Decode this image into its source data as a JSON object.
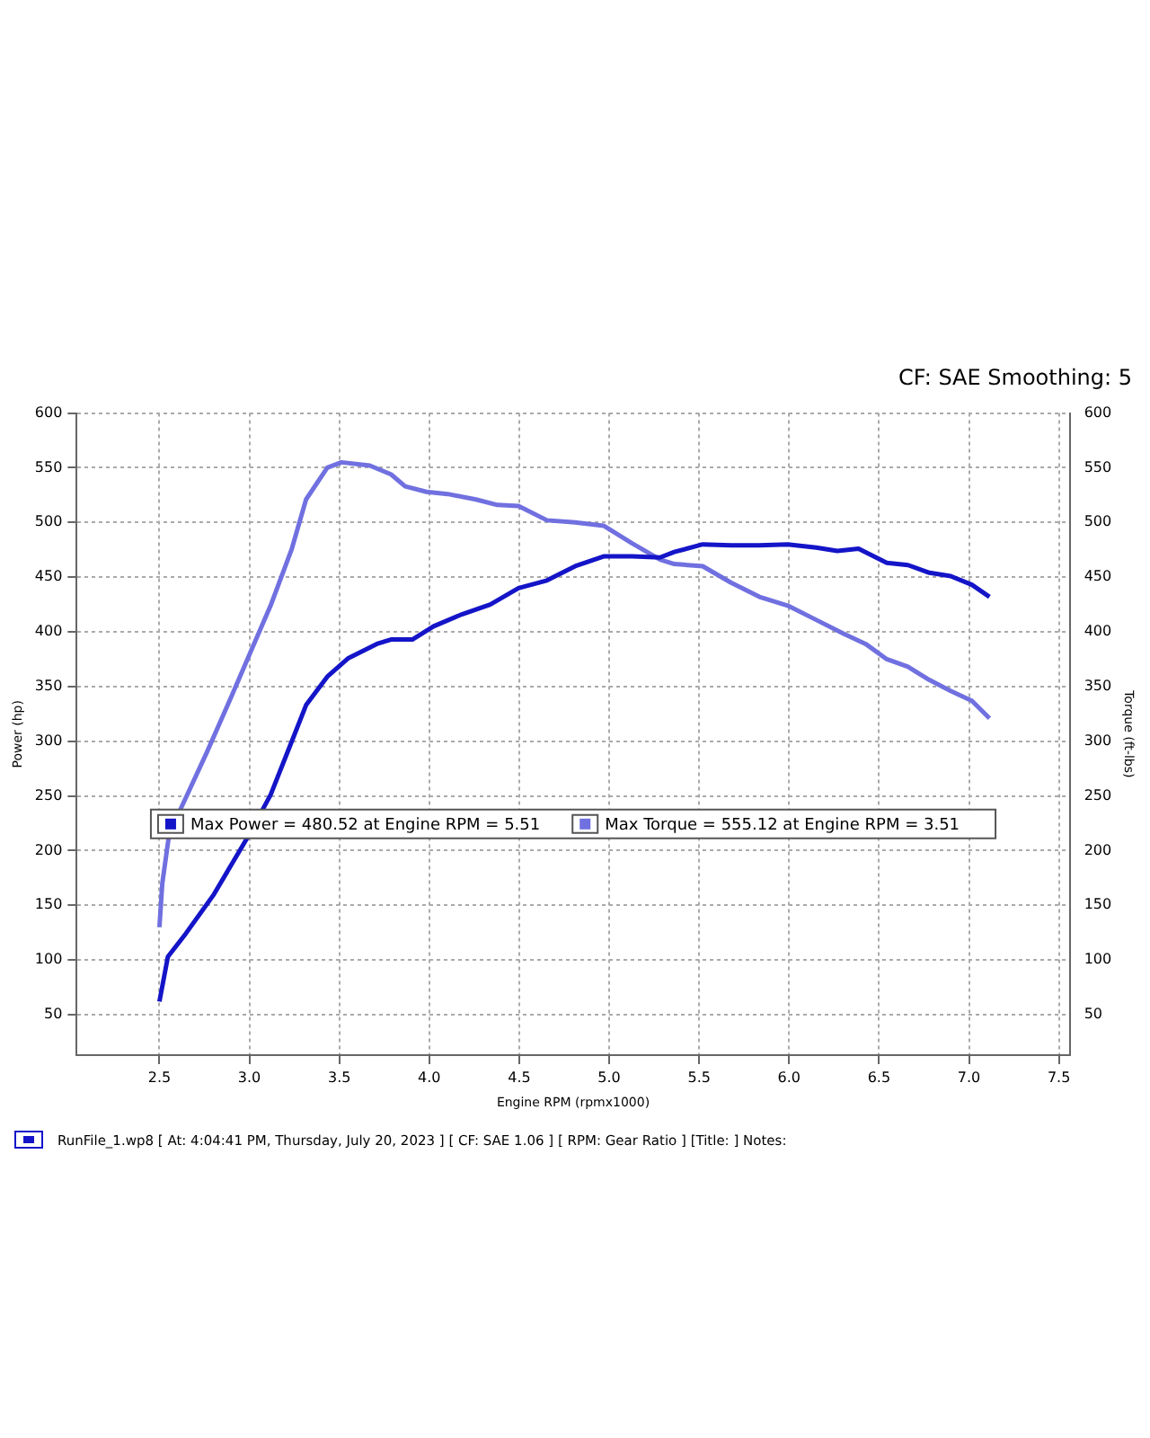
{
  "chart_data": {
    "type": "line",
    "subtitle": "CF: SAE Smoothing: 5",
    "xlabel": "Engine RPM (rpmx1000)",
    "ylabel": "Power (hp)",
    "y2label": "Torque (ft-lbs)",
    "xlim": [
      2.04,
      7.56
    ],
    "xticks": [
      {
        "value": 2.5,
        "label": "2.5"
      },
      {
        "value": 3,
        "label": "3.0"
      },
      {
        "value": 3.5,
        "label": "3.5"
      },
      {
        "value": 4,
        "label": "4.0"
      },
      {
        "value": 4.5,
        "label": "4.5"
      },
      {
        "value": 5,
        "label": "5.0"
      },
      {
        "value": 5.5,
        "label": "5.5"
      },
      {
        "value": 6,
        "label": "6.0"
      },
      {
        "value": 6.5,
        "label": "6.5"
      },
      {
        "value": 7,
        "label": "7.0"
      },
      {
        "value": 7.5,
        "label": "7.5"
      }
    ],
    "ylim": [
      13,
      600
    ],
    "yticks": [
      50,
      100,
      150,
      200,
      250,
      300,
      350,
      400,
      450,
      500,
      550,
      600
    ],
    "y2lim": [
      13,
      600
    ],
    "y2ticks": [
      50,
      100,
      150,
      200,
      250,
      300,
      350,
      400,
      450,
      500,
      550,
      600
    ],
    "grid": true,
    "legend": "center",
    "line_style": "solid",
    "marker": "none",
    "series": [
      {
        "name": "Max Power = 480.52 at Engine RPM = 5.51",
        "color": "#1414c8",
        "x": [
          2.5,
          2.547,
          2.646,
          2.803,
          3.0,
          3.118,
          3.236,
          3.315,
          3.433,
          3.551,
          3.709,
          3.787,
          3.906,
          4.024,
          4.181,
          4.339,
          4.496,
          4.654,
          4.811,
          4.969,
          5.126,
          5.283,
          5.362,
          5.52,
          5.677,
          5.835,
          5.992,
          6.15,
          6.268,
          6.386,
          6.543,
          6.661,
          6.78,
          6.898,
          7.016,
          7.114
        ],
        "values": [
          62,
          103,
          124,
          160,
          215,
          251,
          300,
          333,
          359,
          376,
          389,
          393,
          393,
          405,
          416,
          425,
          440,
          447,
          460,
          469,
          469,
          468,
          473,
          480,
          479,
          479,
          480,
          477,
          474,
          476,
          463,
          461,
          454,
          451,
          443,
          432
        ]
      },
      {
        "name": "Max Torque = 555.12 at Engine RPM = 3.51",
        "color": "#7070e0",
        "axis": "y2",
        "x": [
          2.5,
          2.516,
          2.555,
          2.646,
          2.764,
          2.882,
          3.0,
          3.118,
          3.236,
          3.315,
          3.433,
          3.512,
          3.669,
          3.787,
          3.866,
          3.984,
          4.102,
          4.26,
          4.378,
          4.496,
          4.654,
          4.811,
          4.969,
          5.126,
          5.283,
          5.362,
          5.52,
          5.677,
          5.835,
          5.992,
          6.15,
          6.307,
          6.425,
          6.543,
          6.661,
          6.78,
          6.898,
          7.016,
          7.114
        ],
        "values": [
          130,
          170,
          216,
          248,
          290,
          334,
          379,
          424,
          476,
          521,
          550,
          555,
          552,
          544,
          533,
          528,
          526,
          521,
          516,
          515,
          502,
          500,
          497,
          481,
          466,
          462,
          460,
          445,
          432,
          424,
          411,
          398,
          389,
          375,
          368,
          356,
          346,
          337,
          321
        ]
      }
    ],
    "annotations": [
      "RunFile_1.wp8 [ At: 4:04:41 PM, Thursday, July 20, 2023 ] [ CF: SAE 1.06 ] [ RPM: Gear Ratio ] [Title: ]  Notes:"
    ]
  }
}
